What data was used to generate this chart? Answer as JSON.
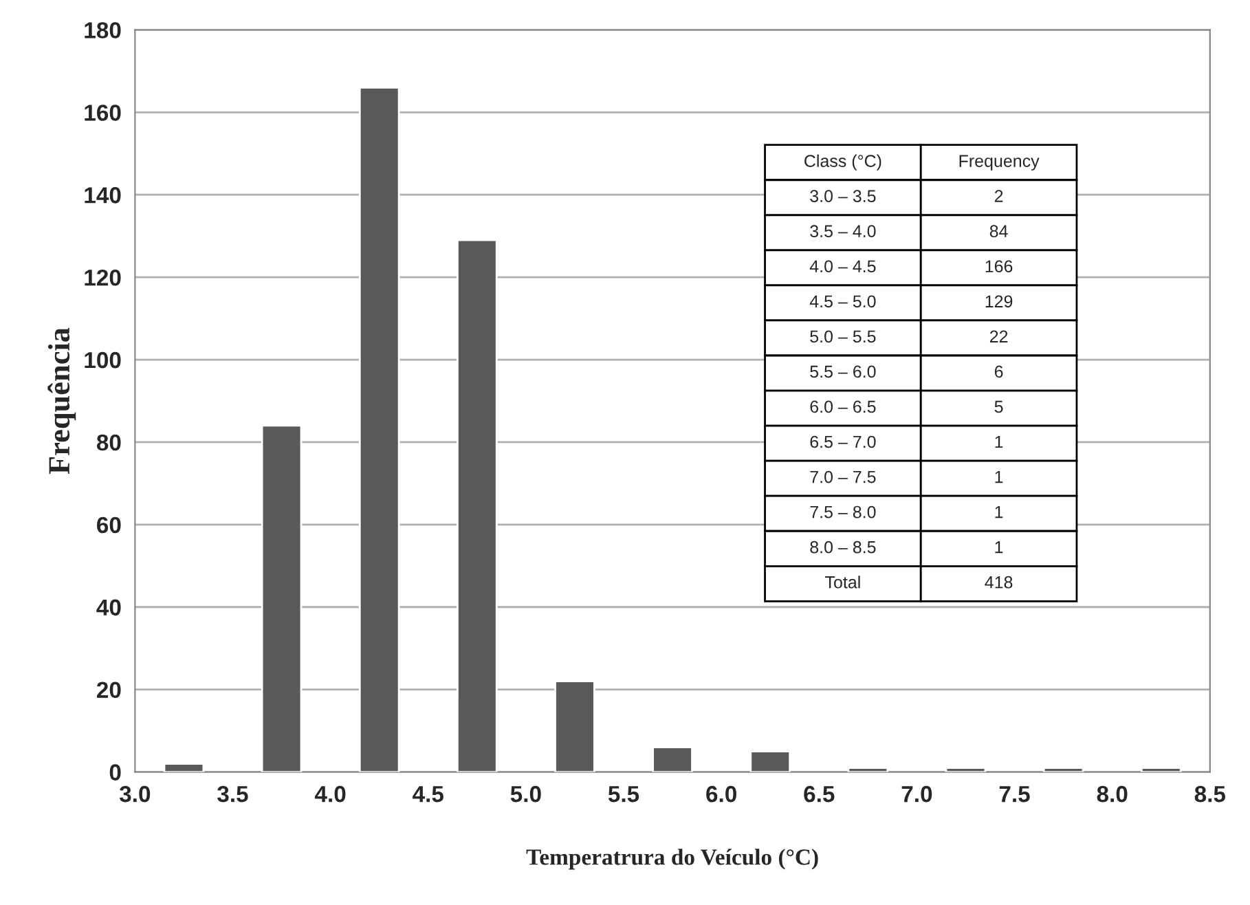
{
  "chart_data": {
    "type": "histogram",
    "xlabel": "Temperatrura do Veículo (°C)",
    "ylabel": "Frequência",
    "bins": [
      3.0,
      3.5,
      4.0,
      4.5,
      5.0,
      5.5,
      6.0,
      6.5,
      7.0,
      7.5,
      8.0,
      8.5
    ],
    "values": [
      2,
      84,
      166,
      129,
      22,
      6,
      5,
      1,
      1,
      1,
      1
    ],
    "color": "#595959",
    "xlim": [
      3.0,
      8.5
    ],
    "xticks": [
      {
        "value": 3.0,
        "label": "3.0"
      },
      {
        "value": 3.5,
        "label": "3.5"
      },
      {
        "value": 4.0,
        "label": "4.0"
      },
      {
        "value": 4.5,
        "label": "4.5"
      },
      {
        "value": 5.0,
        "label": "5.0"
      },
      {
        "value": 5.5,
        "label": "5.5"
      },
      {
        "value": 6.0,
        "label": "6.0"
      },
      {
        "value": 6.5,
        "label": "6.5"
      },
      {
        "value": 7.0,
        "label": "7.0"
      },
      {
        "value": 7.5,
        "label": "7.5"
      },
      {
        "value": 8.0,
        "label": "8.0"
      },
      {
        "value": 8.5,
        "label": "8.5"
      }
    ],
    "ylim": [
      0,
      180
    ],
    "yticks": [
      0,
      20,
      40,
      60,
      80,
      100,
      120,
      140,
      160,
      180
    ],
    "grid": "y",
    "annotations": [
      "Class (°C)",
      "Frequency",
      "3.0 – 3.5",
      "2",
      "3.5 – 4.0",
      "84",
      "4.0 – 4.5",
      "166",
      "4.5 – 5.0",
      "129",
      "5.0 – 5.5",
      "22",
      "5.5 – 6.0",
      "6",
      "6.0 – 6.5",
      "5",
      "6.5 – 7.0",
      "1",
      "7.0 – 7.5",
      "1",
      "7.5 – 8.0",
      "1",
      "8.0 – 8.5",
      "1",
      "Total",
      "418"
    ]
  }
}
